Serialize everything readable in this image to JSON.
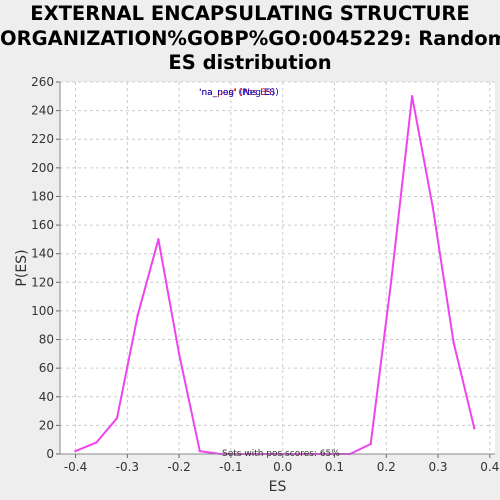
{
  "chart_data": {
    "type": "line",
    "title": [
      "EXTERNAL ENCAPSULATING STRUCTURE",
      "ORGANIZATION%GOBP%GO:0045229: Random",
      "ES distribution"
    ],
    "xlabel": "ES",
    "ylabel": "P(ES)",
    "xlim": [
      -0.43,
      0.41
    ],
    "ylim": [
      0,
      260
    ],
    "xticks": [
      -0.4,
      -0.3,
      -0.2,
      -0.1,
      0.0,
      0.1,
      0.2,
      0.3,
      0.4
    ],
    "xtick_labels": [
      "-0.4",
      "-0.3",
      "-0.2",
      "-0.1",
      "0.0",
      "0.1",
      "0.2",
      "0.3",
      "0.4"
    ],
    "yticks": [
      0,
      20,
      40,
      60,
      80,
      100,
      120,
      140,
      160,
      180,
      200,
      220,
      240,
      260
    ],
    "grid": true,
    "legend": {
      "placement": "top-center",
      "entries": [
        {
          "text": "'na_neg' (Neg ES)",
          "color": "#0000cc"
        },
        {
          "text": "'na_pos' (Pos ES)",
          "color": "#cc0000"
        }
      ]
    },
    "annotation": "Sets with pos scores: 65%",
    "line_color": "#ee44ee",
    "series": [
      {
        "color": "#ee44ee",
        "points": [
          [
            -0.4,
            2
          ],
          [
            -0.36,
            8
          ],
          [
            -0.32,
            25
          ],
          [
            -0.28,
            97
          ],
          [
            -0.24,
            150
          ],
          [
            -0.2,
            70
          ],
          [
            -0.16,
            2
          ],
          [
            -0.12,
            0
          ],
          [
            -0.08,
            0
          ],
          [
            -0.04,
            0
          ],
          [
            0.0,
            0
          ],
          [
            0.04,
            0
          ],
          [
            0.08,
            0
          ],
          [
            0.13,
            0
          ],
          [
            0.17,
            7
          ],
          [
            0.21,
            122
          ],
          [
            0.25,
            250
          ],
          [
            0.29,
            172
          ],
          [
            0.33,
            78
          ],
          [
            0.37,
            18
          ]
        ]
      }
    ]
  }
}
